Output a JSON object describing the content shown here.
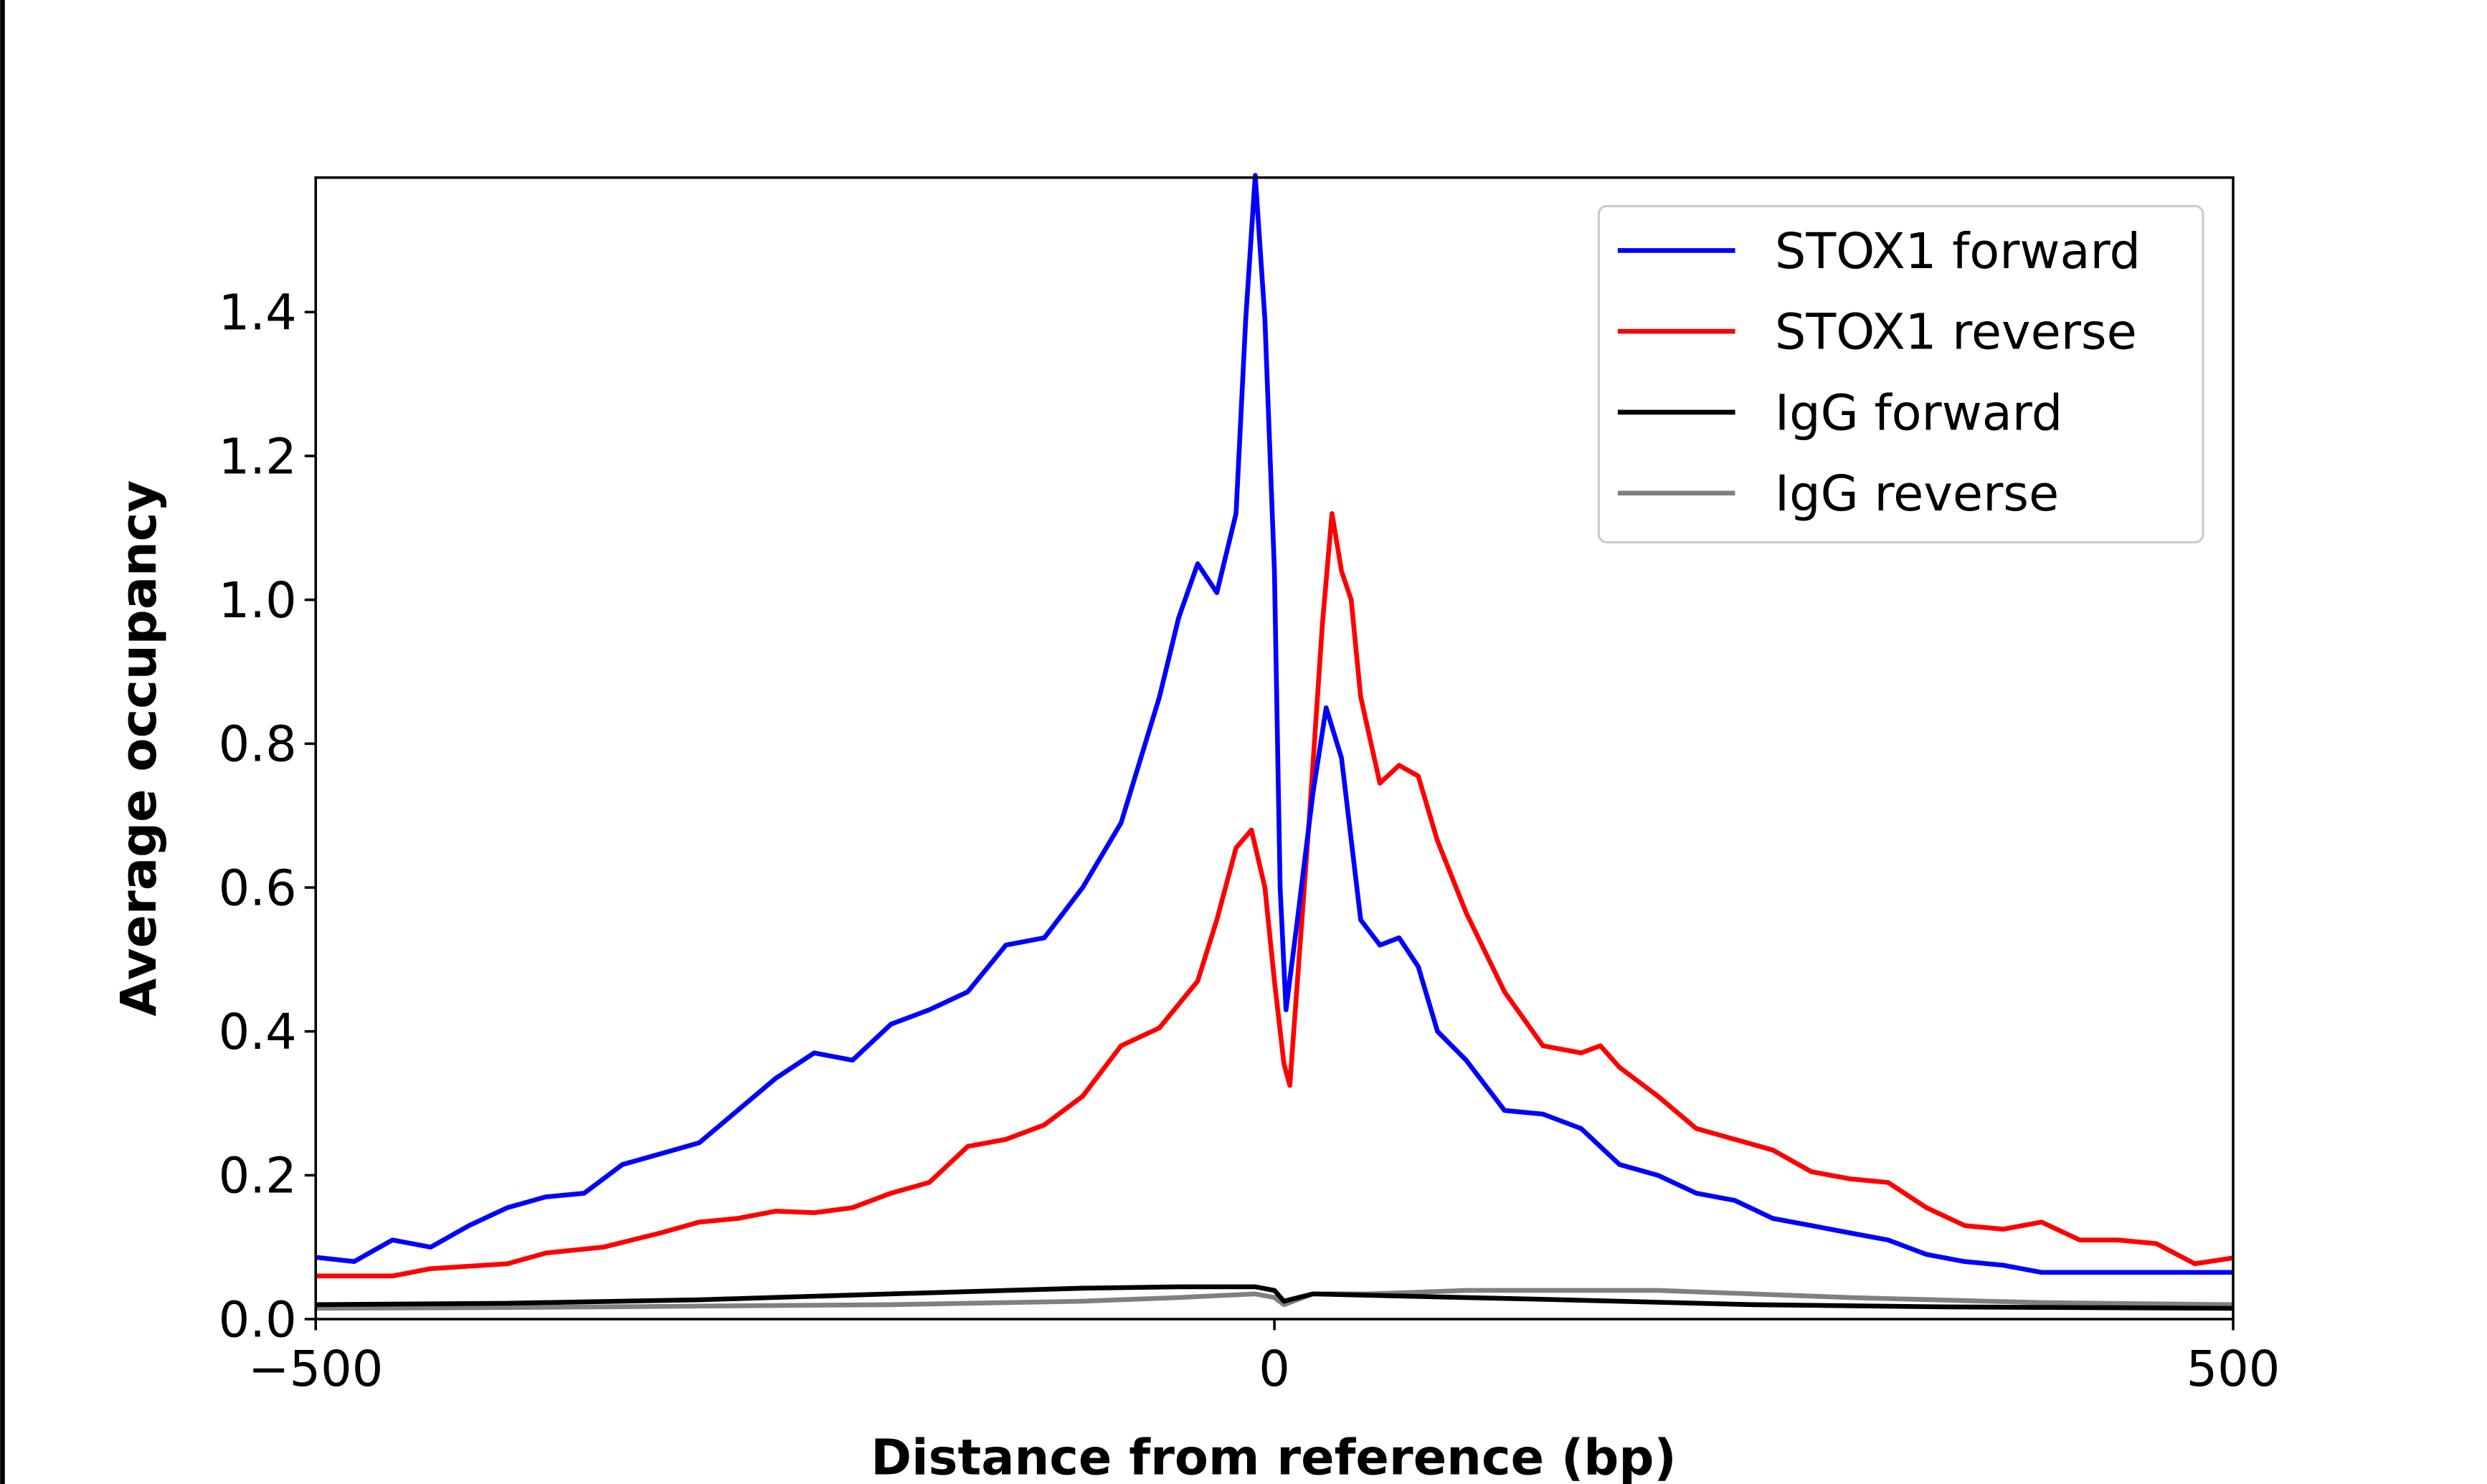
{
  "chart_data": {
    "type": "line",
    "title": "",
    "xlabel": "Distance from reference (bp)",
    "ylabel": "Average occupancy",
    "xlim": [
      -500,
      500
    ],
    "ylim": [
      0,
      1.587
    ],
    "xticks": [
      -500,
      0,
      500
    ],
    "xtick_labels": [
      "−500",
      "0",
      "500"
    ],
    "yticks": [
      0,
      0.2,
      0.4,
      0.6,
      0.8,
      1.0,
      1.2,
      1.4
    ],
    "ytick_labels": [
      "0.0",
      "0.2",
      "0.4",
      "0.6",
      "0.8",
      "1.0",
      "1.2",
      "1.4"
    ],
    "grid": false,
    "legend_position": "top-right",
    "series": [
      {
        "name": "STOX1 forward",
        "color": "#0000ff",
        "x": [
          -500,
          -480,
          -460,
          -440,
          -420,
          -400,
          -380,
          -360,
          -340,
          -320,
          -300,
          -280,
          -260,
          -240,
          -220,
          -200,
          -180,
          -160,
          -140,
          -120,
          -100,
          -80,
          -60,
          -50,
          -40,
          -30,
          -20,
          -15,
          -10,
          -5,
          0,
          3,
          6,
          12,
          20,
          27,
          35,
          45,
          55,
          65,
          75,
          85,
          100,
          120,
          140,
          160,
          180,
          200,
          220,
          240,
          260,
          280,
          300,
          320,
          340,
          360,
          380,
          400,
          440,
          500
        ],
        "y": [
          0.086,
          0.08,
          0.11,
          0.1,
          0.13,
          0.155,
          0.17,
          0.175,
          0.215,
          0.23,
          0.245,
          0.29,
          0.335,
          0.37,
          0.36,
          0.41,
          0.43,
          0.455,
          0.52,
          0.53,
          0.6,
          0.69,
          0.865,
          0.975,
          1.05,
          1.01,
          1.12,
          1.39,
          1.59,
          1.39,
          1.04,
          0.6,
          0.43,
          0.555,
          0.73,
          0.85,
          0.78,
          0.555,
          0.52,
          0.53,
          0.49,
          0.4,
          0.36,
          0.29,
          0.285,
          0.265,
          0.215,
          0.2,
          0.175,
          0.165,
          0.14,
          0.13,
          0.12,
          0.11,
          0.09,
          0.08,
          0.075,
          0.065,
          0.065,
          0.065
        ]
      },
      {
        "name": "STOX1 reverse",
        "color": "#ff0000",
        "x": [
          -500,
          -460,
          -440,
          -400,
          -380,
          -350,
          -320,
          -300,
          -280,
          -260,
          -240,
          -220,
          -200,
          -180,
          -160,
          -140,
          -120,
          -100,
          -80,
          -60,
          -40,
          -30,
          -20,
          -12,
          -5,
          0,
          5,
          8,
          12,
          18,
          25,
          30,
          35,
          40,
          45,
          55,
          65,
          75,
          85,
          100,
          120,
          140,
          160,
          170,
          180,
          200,
          220,
          240,
          260,
          280,
          300,
          320,
          340,
          360,
          380,
          400,
          420,
          440,
          460,
          480,
          500
        ],
        "y": [
          0.06,
          0.06,
          0.07,
          0.077,
          0.092,
          0.1,
          0.12,
          0.135,
          0.14,
          0.15,
          0.148,
          0.155,
          0.175,
          0.19,
          0.24,
          0.25,
          0.27,
          0.31,
          0.38,
          0.405,
          0.47,
          0.555,
          0.655,
          0.68,
          0.6,
          0.47,
          0.355,
          0.325,
          0.47,
          0.69,
          0.965,
          1.12,
          1.04,
          1.0,
          0.865,
          0.745,
          0.77,
          0.755,
          0.665,
          0.565,
          0.455,
          0.38,
          0.37,
          0.38,
          0.35,
          0.31,
          0.265,
          0.25,
          0.235,
          0.205,
          0.195,
          0.19,
          0.155,
          0.13,
          0.125,
          0.135,
          0.11,
          0.11,
          0.105,
          0.077,
          0.085
        ]
      },
      {
        "name": "IgG forward",
        "color": "#000000",
        "x": [
          -500,
          -400,
          -300,
          -200,
          -100,
          -50,
          -10,
          0,
          5,
          20,
          50,
          100,
          150,
          250,
          350,
          500
        ],
        "y": [
          0.02,
          0.022,
          0.027,
          0.035,
          0.043,
          0.045,
          0.045,
          0.04,
          0.025,
          0.035,
          0.033,
          0.03,
          0.027,
          0.02,
          0.017,
          0.015
        ]
      },
      {
        "name": "IgG reverse",
        "color": "#808080",
        "x": [
          -500,
          -400,
          -300,
          -200,
          -100,
          -50,
          -10,
          0,
          5,
          20,
          50,
          100,
          200,
          300,
          400,
          500
        ],
        "y": [
          0.015,
          0.016,
          0.018,
          0.02,
          0.025,
          0.03,
          0.035,
          0.03,
          0.02,
          0.035,
          0.035,
          0.04,
          0.04,
          0.03,
          0.023,
          0.02
        ]
      }
    ]
  }
}
